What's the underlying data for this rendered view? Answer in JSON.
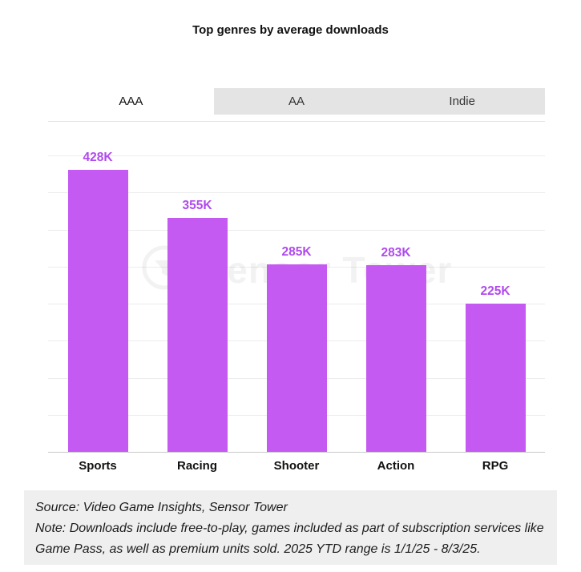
{
  "title": "Top genres by average downloads",
  "tabs": [
    {
      "label": "AAA",
      "active": true
    },
    {
      "label": "AA",
      "active": false
    },
    {
      "label": "Indie",
      "active": false
    }
  ],
  "watermark": "Sensor Tower",
  "chart_data": {
    "type": "bar",
    "title": "Top genres by average downloads",
    "categories": [
      "Sports",
      "Racing",
      "Shooter",
      "Action",
      "RPG"
    ],
    "values": [
      428000,
      355000,
      285000,
      283000,
      225000
    ],
    "value_labels": [
      "428K",
      "355K",
      "285K",
      "283K",
      "225K"
    ],
    "xlabel": "",
    "ylabel": "",
    "ylim": [
      0,
      450000
    ],
    "grid": true,
    "legend_position": "none",
    "bar_color": "#c45af2",
    "value_label_color": "#b04aee"
  },
  "footer": {
    "source": "Source: Video Game Insights, Sensor Tower",
    "note": "Note: Downloads include free-to-play, games included as part of subscription services like Game Pass, as well as premium units sold. 2025 YTD range is 1/1/25 - 8/3/25."
  }
}
